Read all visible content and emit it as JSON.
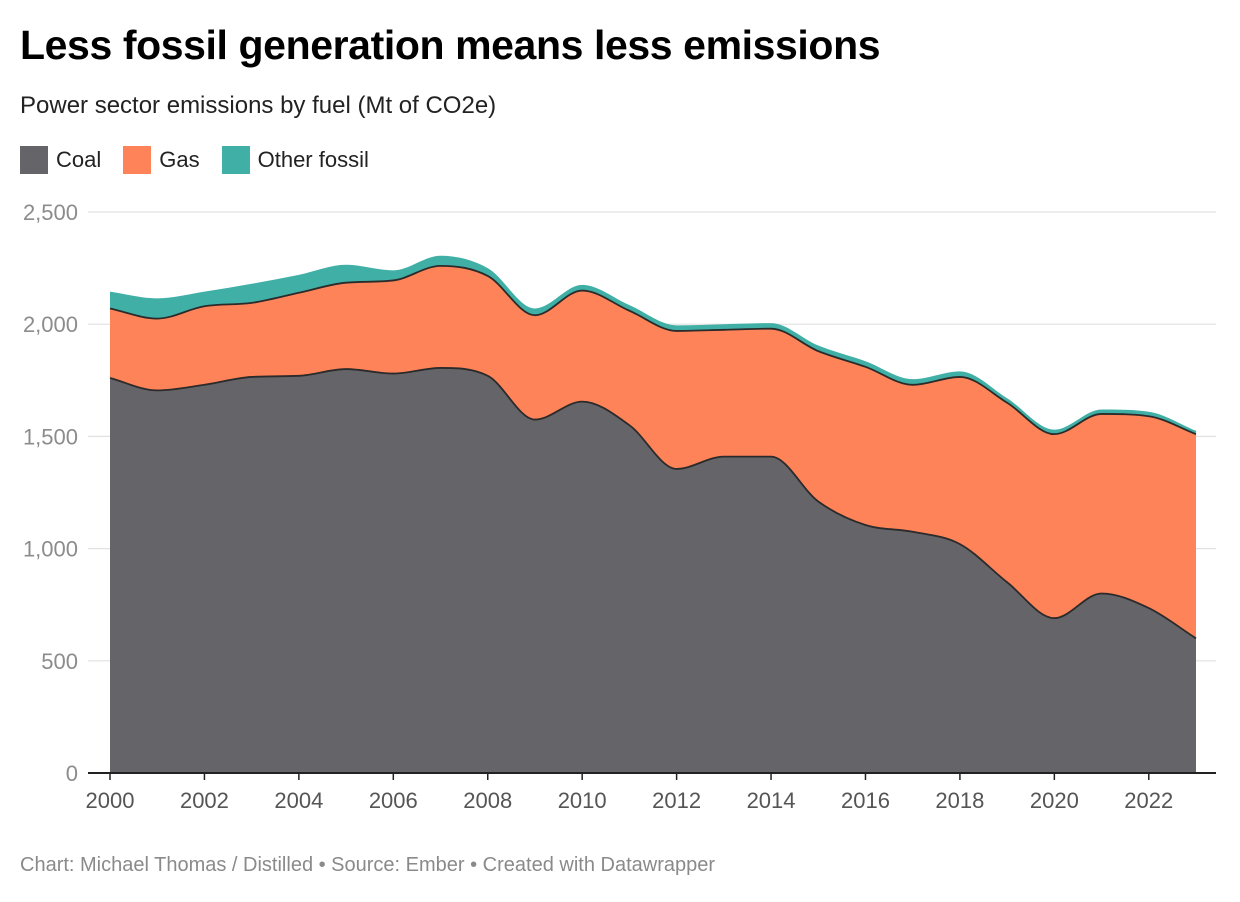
{
  "header": {
    "title": "Less fossil generation means less emissions",
    "subtitle": "Power sector emissions by fuel (Mt of CO2e)"
  },
  "footer": {
    "credit": "Chart: Michael Thomas / Distilled • Source: Ember • Created with Datawrapper"
  },
  "chart_data": {
    "type": "area",
    "stacked": true,
    "x": [
      2000,
      2001,
      2002,
      2003,
      2004,
      2005,
      2006,
      2007,
      2008,
      2009,
      2010,
      2011,
      2012,
      2013,
      2014,
      2015,
      2016,
      2017,
      2018,
      2019,
      2020,
      2021,
      2022,
      2023
    ],
    "series": [
      {
        "name": "Coal",
        "color": "#646469",
        "values": [
          1760,
          1705,
          1730,
          1765,
          1770,
          1800,
          1780,
          1805,
          1770,
          1575,
          1655,
          1550,
          1355,
          1410,
          1410,
          1210,
          1105,
          1075,
          1020,
          850,
          690,
          800,
          735,
          600
        ]
      },
      {
        "name": "Gas",
        "color": "#ff8359",
        "values": [
          310,
          320,
          350,
          330,
          370,
          385,
          415,
          455,
          445,
          465,
          495,
          510,
          615,
          565,
          570,
          670,
          705,
          655,
          745,
          800,
          820,
          800,
          855,
          910
        ]
      },
      {
        "name": "Other fossil",
        "color": "#40b0a6",
        "values": [
          75,
          90,
          65,
          85,
          80,
          80,
          45,
          45,
          35,
          30,
          25,
          25,
          25,
          25,
          25,
          25,
          25,
          25,
          25,
          20,
          20,
          20,
          20,
          15
        ]
      }
    ],
    "x_tick_labels": [
      "2000",
      "2002",
      "2004",
      "2006",
      "2008",
      "2010",
      "2012",
      "2014",
      "2016",
      "2018",
      "2020",
      "2022"
    ],
    "y_ticks": [
      0,
      500,
      1000,
      1500,
      2000,
      2500
    ],
    "y_tick_labels": [
      "0",
      "500",
      "1,000",
      "1,500",
      "2,000",
      "2,500"
    ],
    "ylim": [
      0,
      2500
    ],
    "xlim": [
      2000,
      2023
    ],
    "grid": true,
    "legend_position": "top-left"
  }
}
